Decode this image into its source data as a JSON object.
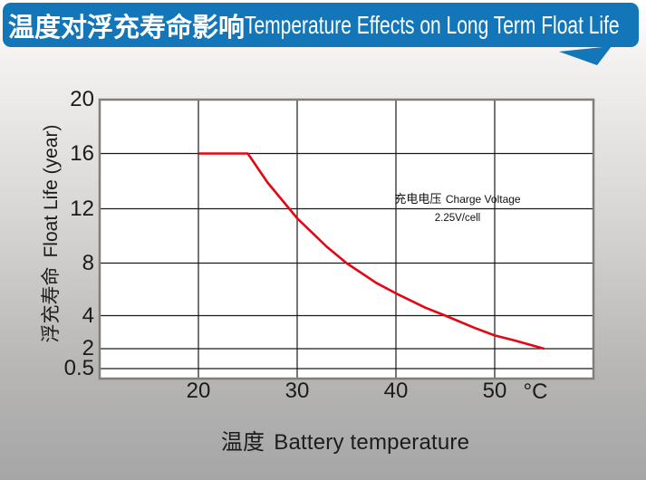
{
  "header": {
    "title_zh": "温度对浮充寿命影响",
    "title_en": "Temperature Effects on Long Term Float Life",
    "banner_color": "#1276b8",
    "text_color": "#ffffff"
  },
  "chart_data": {
    "type": "line",
    "title_zh": "温度对浮充寿命影响",
    "title_en": "Temperature Effects on Long Term Float Life",
    "xlabel_zh": "温度",
    "xlabel_en": "Battery temperature",
    "x_unit": "°C",
    "ylabel_zh": "浮充寿命",
    "ylabel_en": "Float Life (year)",
    "x_range": [
      10,
      60
    ],
    "x_ticks": [
      20,
      30,
      40,
      50
    ],
    "y_ticks": [
      20,
      16,
      12,
      8,
      4,
      2,
      0.5
    ],
    "y_scale": "custom-compressed",
    "grid": true,
    "plot_bg": "#ffffff",
    "grid_color": "#1a1a1a",
    "frame_color": "#7f7f7f",
    "series": [
      {
        "name": "float-life-vs-temperature",
        "color": "#e30613",
        "points": [
          [
            20,
            16
          ],
          [
            25,
            16
          ],
          [
            27,
            13.9
          ],
          [
            30,
            11.3
          ],
          [
            33,
            9.2
          ],
          [
            35,
            8
          ],
          [
            38,
            6.5
          ],
          [
            40,
            5.7
          ],
          [
            43,
            4.6
          ],
          [
            45,
            4
          ],
          [
            48,
            3.25
          ],
          [
            50,
            2.8
          ],
          [
            52,
            2.5
          ],
          [
            55,
            2
          ]
        ]
      }
    ],
    "annotation": {
      "line1_zh": "充电电压",
      "line1_en": "Charge Voltage",
      "line2": "2.25V/cell"
    }
  }
}
